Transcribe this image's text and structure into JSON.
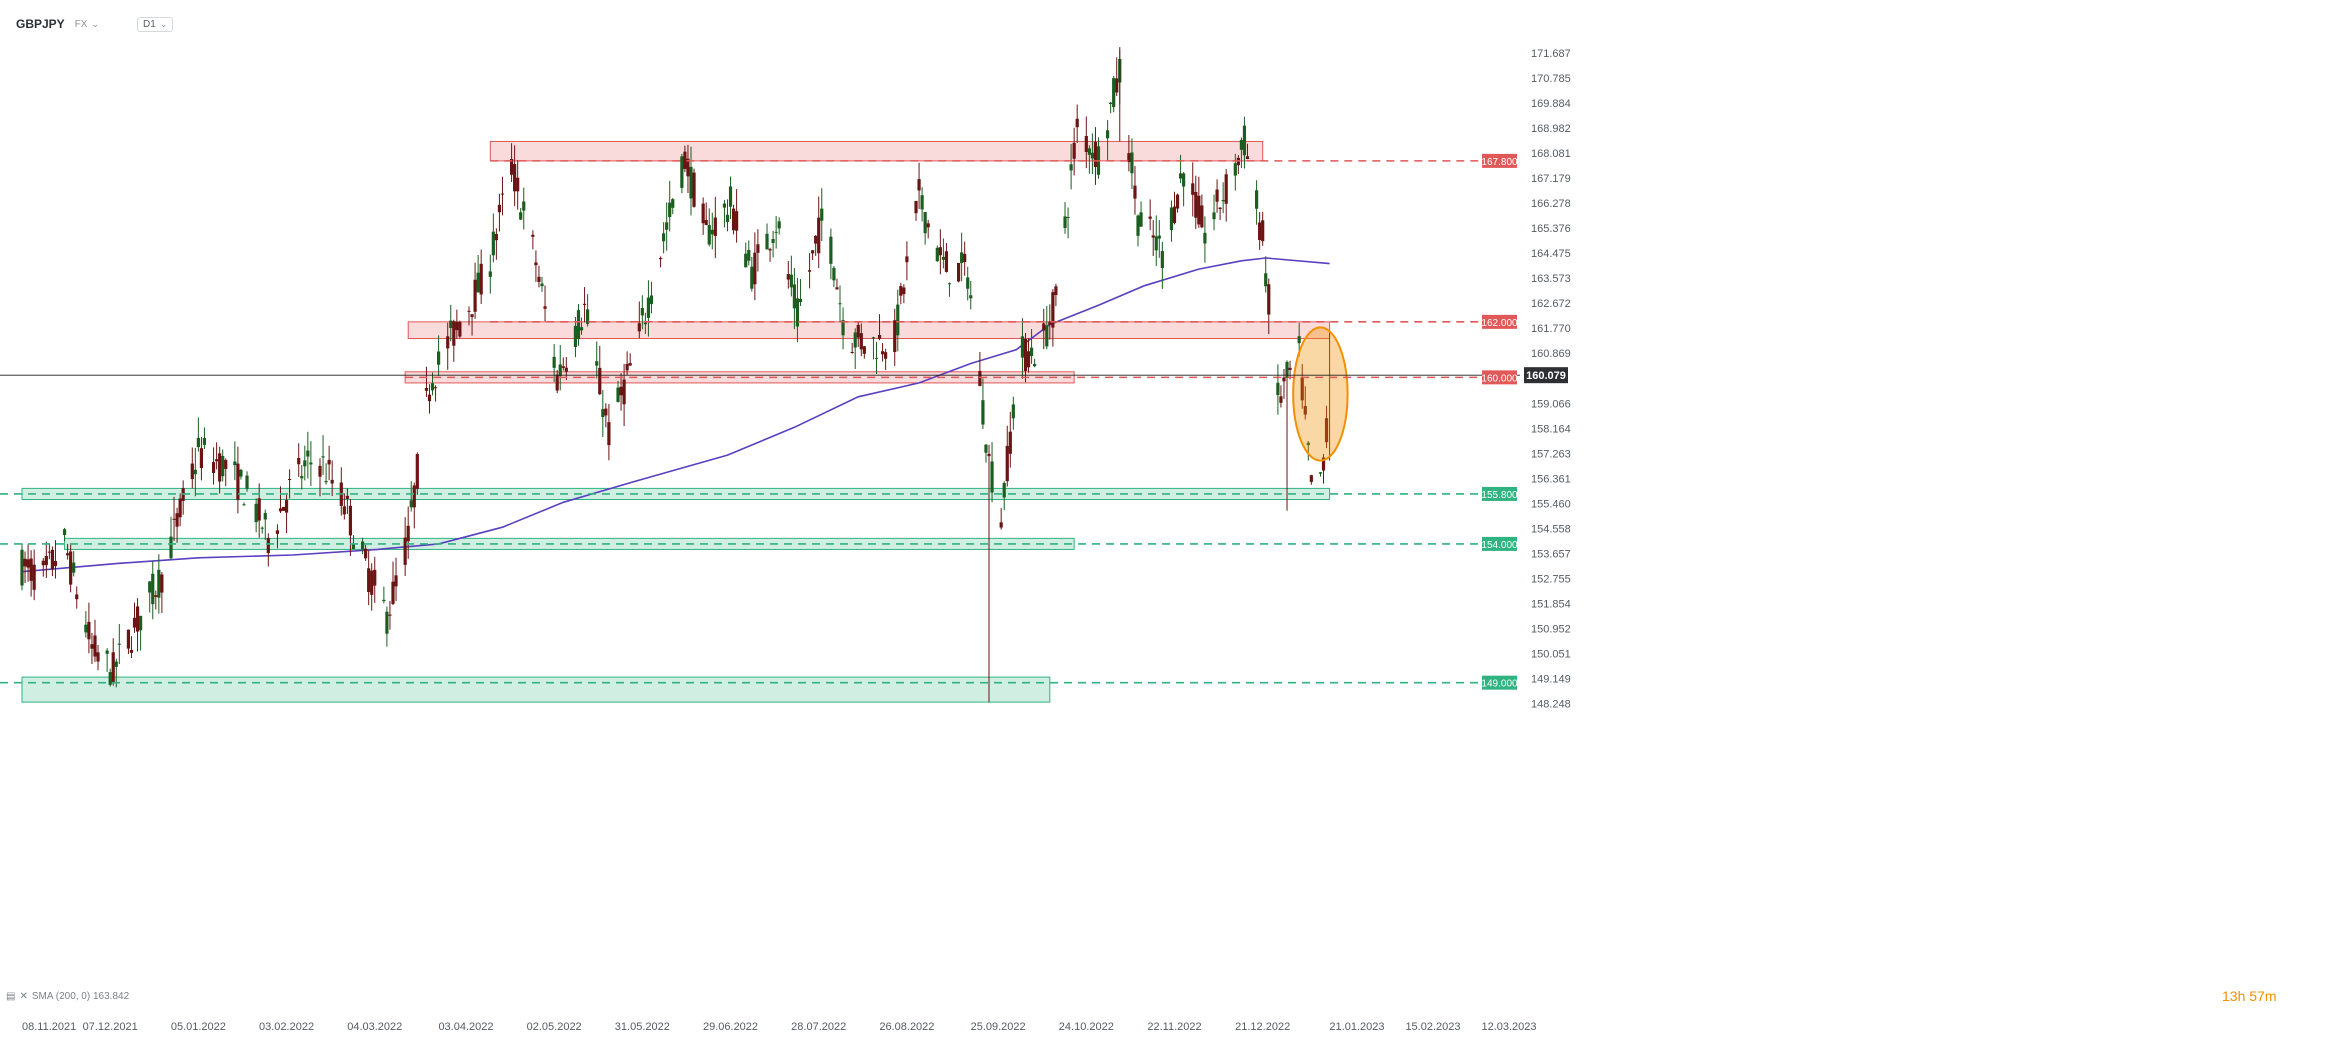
{
  "header": {
    "symbol": "GBPJPY",
    "market": "FX",
    "timeframe": "D1"
  },
  "indicator_legend": "SMA (200, 0) 163.842",
  "countdown": "13h 57m",
  "colors": {
    "up_candle": "#1b5e20",
    "down_candle": "#6b1414",
    "sma": "#5a3fc0",
    "resistance": "#e05858",
    "support": "#2fb380",
    "highlight": "#f29000",
    "price_line": "#1f1f1f"
  },
  "chart_data": {
    "type": "candlestick",
    "title": "",
    "x_tick_labels": [
      "08.11.2021",
      "07.12.2021",
      "05.01.2022",
      "03.02.2022",
      "04.03.2022",
      "03.04.2022",
      "02.05.2022",
      "31.05.2022",
      "29.06.2022",
      "28.07.2022",
      "26.08.2022",
      "25.09.2022",
      "24.10.2022",
      "22.11.2022",
      "21.12.2022",
      "21.01.2023",
      "15.02.2023",
      "12.03.2023"
    ],
    "y_tick_labels": [
      "171.687",
      "170.785",
      "169.884",
      "168.982",
      "168.081",
      "167.179",
      "166.278",
      "165.376",
      "164.475",
      "163.573",
      "162.672",
      "161.770",
      "160.869",
      "159.066",
      "158.164",
      "157.263",
      "156.361",
      "155.460",
      "154.558",
      "153.657",
      "152.755",
      "151.854",
      "150.952",
      "150.051",
      "149.149",
      "148.248"
    ],
    "ylim": [
      148.248,
      171.687
    ],
    "current_price": 160.079,
    "horizontal_levels": [
      {
        "label": "167.800",
        "value": 167.8,
        "kind": "resistance"
      },
      {
        "label": "162.000",
        "value": 162.0,
        "kind": "resistance"
      },
      {
        "label": "160.000",
        "value": 160.0,
        "kind": "resistance"
      },
      {
        "label": "155.800",
        "value": 155.8,
        "kind": "support"
      },
      {
        "label": "154.000",
        "value": 154.0,
        "kind": "support"
      },
      {
        "label": "149.000",
        "value": 149.0,
        "kind": "support"
      }
    ],
    "zones": [
      {
        "kind": "resistance",
        "from": "2022-04-11",
        "to": "2022-12-21",
        "low": 167.8,
        "high": 168.5
      },
      {
        "kind": "resistance",
        "from": "2022-03-15",
        "to": "2023-01-12",
        "low": 161.4,
        "high": 162.0
      },
      {
        "kind": "resistance",
        "from": "2022-03-14",
        "to": "2022-10-20",
        "low": 159.8,
        "high": 160.2
      },
      {
        "kind": "support",
        "from": "2021-11-08",
        "to": "2023-01-12",
        "low": 155.6,
        "high": 156.0
      },
      {
        "kind": "support",
        "from": "2021-11-22",
        "to": "2022-10-20",
        "low": 153.8,
        "high": 154.2
      },
      {
        "kind": "support",
        "from": "2021-11-08",
        "to": "2022-10-12",
        "low": 148.3,
        "high": 149.2
      }
    ],
    "highlight": {
      "shape": "ellipse",
      "from": "2023-01-02",
      "to": "2023-01-12",
      "low": 157.0,
      "high": 161.8
    },
    "sma": {
      "name": "SMA (200, 0)",
      "last": 163.842,
      "points": [
        [
          "2021-11-08",
          153.0
        ],
        [
          "2021-12-10",
          153.3
        ],
        [
          "2022-01-05",
          153.5
        ],
        [
          "2022-02-05",
          153.6
        ],
        [
          "2022-03-05",
          153.8
        ],
        [
          "2022-03-25",
          154.0
        ],
        [
          "2022-04-15",
          154.6
        ],
        [
          "2022-05-05",
          155.5
        ],
        [
          "2022-05-30",
          156.3
        ],
        [
          "2022-06-28",
          157.2
        ],
        [
          "2022-07-20",
          158.2
        ],
        [
          "2022-08-10",
          159.3
        ],
        [
          "2022-08-30",
          159.8
        ],
        [
          "2022-09-16",
          160.5
        ],
        [
          "2022-10-01",
          161.0
        ],
        [
          "2022-10-12",
          161.9
        ],
        [
          "2022-10-28",
          162.6
        ],
        [
          "2022-11-12",
          163.3
        ],
        [
          "2022-11-30",
          163.9
        ],
        [
          "2022-12-14",
          164.2
        ],
        [
          "2022-12-22",
          164.3
        ],
        [
          "2023-01-12",
          164.1
        ]
      ]
    },
    "ohlc_anchors": [
      [
        "2021-11-08",
        153.2
      ],
      [
        "2021-11-15",
        152.8
      ],
      [
        "2021-11-22",
        154.0
      ],
      [
        "2021-12-01",
        150.2
      ],
      [
        "2021-12-08",
        149.4
      ],
      [
        "2021-12-15",
        151.0
      ],
      [
        "2021-12-24",
        152.9
      ],
      [
        "2022-01-05",
        157.3
      ],
      [
        "2022-01-14",
        156.8
      ],
      [
        "2022-01-22",
        155.7
      ],
      [
        "2022-01-28",
        154.2
      ],
      [
        "2022-02-05",
        156.2
      ],
      [
        "2022-02-13",
        157.2
      ],
      [
        "2022-02-22",
        155.5
      ],
      [
        "2022-03-01",
        153.2
      ],
      [
        "2022-03-08",
        151.4
      ],
      [
        "2022-03-15",
        154.2
      ],
      [
        "2022-03-22",
        159.8
      ],
      [
        "2022-03-28",
        161.2
      ],
      [
        "2022-04-10",
        163.8
      ],
      [
        "2022-04-18",
        167.6
      ],
      [
        "2022-04-26",
        164.2
      ],
      [
        "2022-05-03",
        160.0
      ],
      [
        "2022-05-12",
        162.5
      ],
      [
        "2022-05-20",
        158.0
      ],
      [
        "2022-05-29",
        161.0
      ],
      [
        "2022-06-07",
        165.0
      ],
      [
        "2022-06-14",
        167.9
      ],
      [
        "2022-06-21",
        165.2
      ],
      [
        "2022-06-29",
        166.2
      ],
      [
        "2022-07-06",
        163.8
      ],
      [
        "2022-07-14",
        165.6
      ],
      [
        "2022-07-21",
        162.2
      ],
      [
        "2022-07-30",
        166.0
      ],
      [
        "2022-08-06",
        161.5
      ],
      [
        "2022-08-14",
        161.2
      ],
      [
        "2022-08-22",
        161.4
      ],
      [
        "2022-08-30",
        166.5
      ],
      [
        "2022-09-07",
        164.0
      ],
      [
        "2022-09-15",
        163.8
      ],
      [
        "2022-09-22",
        157.0
      ],
      [
        "2022-09-26",
        155.0
      ],
      [
        "2022-10-02",
        160.8
      ],
      [
        "2022-10-09",
        161.0
      ],
      [
        "2022-10-14",
        162.8
      ],
      [
        "2022-10-21",
        169.0
      ],
      [
        "2022-10-28",
        168.0
      ],
      [
        "2022-11-04",
        171.0
      ],
      [
        "2022-11-10",
        165.8
      ],
      [
        "2022-11-18",
        164.5
      ],
      [
        "2022-11-25",
        167.5
      ],
      [
        "2022-12-02",
        165.2
      ],
      [
        "2022-12-10",
        167.0
      ],
      [
        "2022-12-15",
        168.5
      ],
      [
        "2022-12-21",
        165.0
      ],
      [
        "2022-12-26",
        159.2
      ],
      [
        "2023-01-02",
        160.8
      ],
      [
        "2023-01-06",
        156.0
      ],
      [
        "2023-01-10",
        156.6
      ],
      [
        "2023-01-12",
        160.08
      ]
    ]
  }
}
